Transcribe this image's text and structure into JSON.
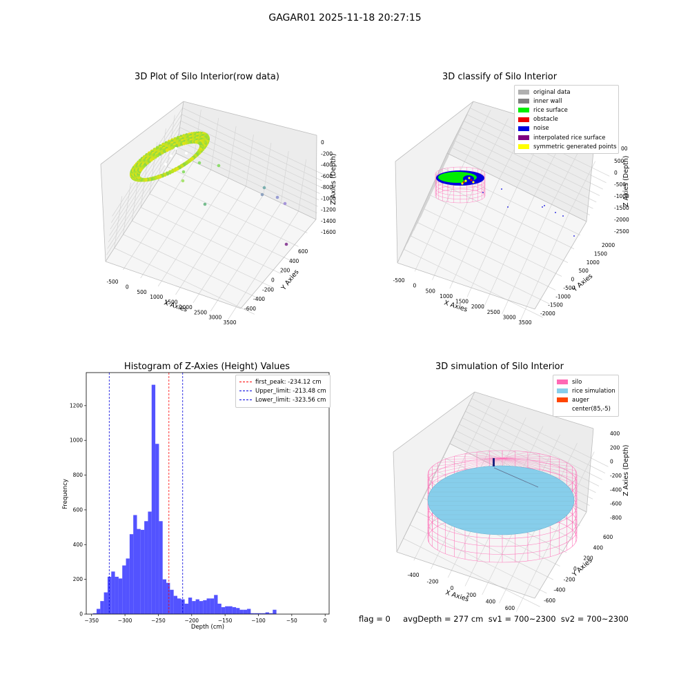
{
  "suptitle": "GAGAR01 2025-11-18 20:27:15",
  "footer": "flag = 0     avgDepth = 277 cm  sv1 = 700~2300  sv2 = 700~2300",
  "colors": {
    "original": "#b0b0b0",
    "inner_wall": "#808080",
    "rice_surface": "#00ee00",
    "obstacle": "#ee0000",
    "noise": "#0000dd",
    "interpolated": "#800080",
    "symmetric": "#ffff00",
    "silo": "#ff69b4",
    "rice_sim": "#87ceeb",
    "auger": "#ff4500",
    "hist_bar": "#4a4aff",
    "first_peak": "#ff0000",
    "limits": "#0000dd"
  },
  "chart_data": [
    {
      "type": "scatter",
      "title": "3D Plot of Silo Interior(row data)",
      "xlabel": "X Axies",
      "ylabel": "Y Axies",
      "zlabel": "Z Axies (Depth)",
      "x_ticks": [
        "-500",
        "0",
        "500",
        "1000",
        "1500",
        "2000",
        "2500",
        "3000",
        "3500"
      ],
      "y_ticks": [
        "-600",
        "-400",
        "-200",
        "0",
        "200",
        "400",
        "600"
      ],
      "z_ticks": [
        "0",
        "-200",
        "-400",
        "-600",
        "-800",
        "-1000",
        "-1200",
        "-1400",
        "-1600"
      ],
      "xlim": [
        -600,
        3600
      ],
      "ylim": [
        -700,
        700
      ],
      "zlim": [
        -1700,
        100
      ],
      "series": [
        {
          "type": "ring",
          "colormap": "viridis-yellowgreen",
          "center": [
            85,
            -5
          ],
          "radius": 600,
          "z": -250
        },
        {
          "type": "outliers",
          "points": [
            [
              850,
              40,
              -400
            ],
            [
              700,
              140,
              -550
            ],
            [
              900,
              240,
              -1050
            ],
            [
              2700,
              -80,
              -300
            ],
            [
              2700,
              -150,
              -500
            ],
            [
              3150,
              -80,
              -520
            ],
            [
              3250,
              -50,
              -600
            ],
            [
              3450,
              350,
              -1650
            ]
          ]
        }
      ],
      "grid": true
    },
    {
      "type": "scatter",
      "title": "3D classify of Silo Interior",
      "xlabel": "X Axies",
      "ylabel": "Y Axies",
      "zlabel": "Z Axies (Depth)",
      "x_ticks": [
        "-500",
        "0",
        "500",
        "1000",
        "1500",
        "2000",
        "2500",
        "3000",
        "3500"
      ],
      "y_ticks": [
        "-2000",
        "-1500",
        "-1000",
        "-500",
        "0",
        "500",
        "1000",
        "1500",
        "2000"
      ],
      "z_ticks": [
        "500",
        "0",
        "-500",
        "-1000",
        "-1500",
        "-2000",
        "-2500"
      ],
      "z_ticks_partial": [
        "00"
      ],
      "xlim": [
        -600,
        3600
      ],
      "ylim": [
        -2100,
        2100
      ],
      "zlim": [
        -2800,
        600
      ],
      "legend": [
        "original data",
        "inner wall",
        "rice surface",
        "obstacle",
        "noise",
        "interpolated rice surface",
        "symmetric generated points"
      ],
      "legend_loc": "top-right",
      "grid": true
    },
    {
      "type": "bar",
      "title": "Histogram of Z-Axies (Height) Values",
      "xlabel": "Depth (cm)",
      "ylabel": "Frequency",
      "xlim": [
        -358,
        6
      ],
      "ylim": [
        0,
        1390
      ],
      "x_ticks": [
        -350,
        -300,
        -250,
        -200,
        -150,
        -100,
        -50,
        0
      ],
      "y_ticks": [
        0,
        200,
        400,
        600,
        800,
        1000,
        1200
      ],
      "bin_start": -348,
      "bin_width": 5.5,
      "values": [
        5,
        30,
        75,
        125,
        215,
        245,
        215,
        205,
        280,
        320,
        460,
        570,
        490,
        485,
        535,
        590,
        1320,
        980,
        535,
        200,
        180,
        140,
        105,
        90,
        85,
        60,
        95,
        75,
        85,
        75,
        80,
        90,
        90,
        110,
        60,
        40,
        45,
        45,
        40,
        35,
        25,
        25,
        30,
        5,
        5,
        5,
        5,
        10,
        5,
        25
      ],
      "lines": [
        {
          "label": "first_peak: -234.12 cm",
          "x": -234.12,
          "color": "red"
        },
        {
          "label": "Upper_limit: -213.48 cm",
          "x": -213.48,
          "color": "blue"
        },
        {
          "label": "Lower_limit: -323.56 cm",
          "x": -323.56,
          "color": "blue"
        }
      ],
      "legend_loc": "top-right"
    },
    {
      "type": "surface",
      "title": "3D simulation of Silo Interior",
      "xlabel": "X Axies",
      "ylabel": "Y Axies",
      "zlabel": "Z Axies (Depth)",
      "x_ticks": [
        "-400",
        "-200",
        "0",
        "200",
        "400",
        "600"
      ],
      "y_ticks": [
        "-600",
        "-400",
        "-200",
        "0",
        "200",
        "400",
        "600"
      ],
      "z_ticks": [
        "400",
        "200",
        "0",
        "-200",
        "-400",
        "-600",
        "-800"
      ],
      "legend": [
        "silo",
        "rice simulation",
        "auger",
        "center(85,-5)"
      ],
      "legend_loc": "top-right",
      "grid": true
    }
  ]
}
